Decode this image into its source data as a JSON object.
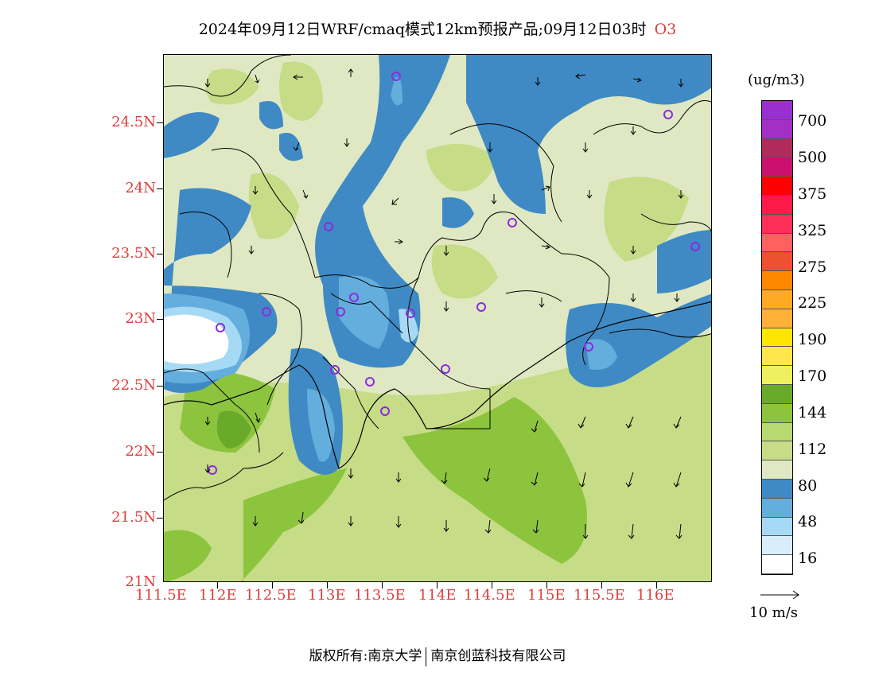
{
  "title": {
    "text": "2024年09月12日WRF/cmaq模式12km预报产品;09月12日03时",
    "species": "O3"
  },
  "axes": {
    "y_labels": [
      "24.5N",
      "24N",
      "23.5N",
      "23N",
      "22.5N",
      "22N",
      "21.5N",
      "21N"
    ],
    "x_labels": [
      "111.5E",
      "112E",
      "112.5E",
      "113E",
      "113.5E",
      "114E",
      "114.5E",
      "115E",
      "115.5E",
      "116E"
    ],
    "label_color": "#e03c3c"
  },
  "legend": {
    "unit": "(ug/m3)",
    "labels": [
      "700",
      "500",
      "375",
      "325",
      "275",
      "225",
      "190",
      "170",
      "144",
      "112",
      "80",
      "48",
      "16"
    ],
    "colors_top_to_bottom": [
      "#9a2fd0",
      "#a230c4",
      "#b02a5a",
      "#cc1070",
      "#ff0000",
      "#ff1a4a",
      "#ff2f5a",
      "#ff6060",
      "#ee5030",
      "#ff8800",
      "#ffaa22",
      "#ffb038",
      "#ffe600",
      "#ffe64a",
      "#eef060",
      "#6aaa2a",
      "#8cc43e",
      "#b8d870",
      "#c6dc86",
      "#dfe8c2",
      "#3f8ac4",
      "#64aede",
      "#a6daf4",
      "#d8eefa",
      "#ffffff"
    ]
  },
  "wind_reference": {
    "label": "10 m/s"
  },
  "footer": {
    "left": "版权所有:南京大学",
    "right": "南京创蓝科技有限公司"
  }
}
